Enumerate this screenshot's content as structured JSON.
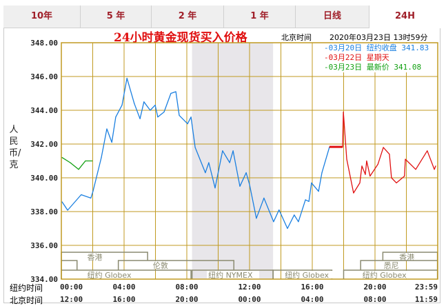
{
  "tabs": [
    {
      "label": "10年",
      "active": false
    },
    {
      "label": "5 年",
      "active": false
    },
    {
      "label": "2 年",
      "active": false
    },
    {
      "label": "1 年",
      "active": false
    },
    {
      "label": "日线",
      "active": false
    },
    {
      "label": "24H",
      "active": true
    }
  ],
  "header": {
    "title": "24小时黄金现货买入价格",
    "timezone_label": "北京时间",
    "timestamp": "2020年03月23日 13时59分"
  },
  "legend": [
    {
      "text": "-03月20日  纽约收盘 341.83",
      "color": "#1a7fe0"
    },
    {
      "text": "-03月22日    星期天",
      "color": "#e01010"
    },
    {
      "text": "-03月23日    最新价 341.08",
      "color": "#11a011"
    }
  ],
  "chart_data": {
    "type": "line",
    "title": "24小时黄金现货买入价格",
    "ylabel": "人民币/克",
    "ylim": [
      334,
      348
    ],
    "y_ticks": [
      "348.00",
      "346.00",
      "344.00",
      "342.00",
      "340.00",
      "338.00",
      "336.00",
      "334.00"
    ],
    "x_axis_rows": [
      {
        "label": "纽约时间",
        "ticks": [
          "00:00",
          "04:00",
          "08:00",
          "12:00",
          "16:00",
          "20:00",
          "23:59"
        ]
      },
      {
        "label": "北京时间",
        "ticks": [
          "12:00",
          "16:00",
          "20:00",
          "00:00",
          "04:00",
          "08:00",
          "11:59"
        ]
      }
    ],
    "xlim_ny_hours": [
      0,
      24
    ],
    "grid": true,
    "shaded_period_ny": [
      "08:20",
      "13:30"
    ],
    "series": [
      {
        "name": "03月20日",
        "color": "#1a7fe0",
        "points": [
          [
            "00:03",
            338.57
          ],
          [
            "00:24",
            338.08
          ],
          [
            "01:16",
            339.0
          ],
          [
            "01:53",
            338.8
          ],
          [
            "02:01",
            339.2
          ],
          [
            "02:33",
            341.2
          ],
          [
            "02:54",
            342.9
          ],
          [
            "03:13",
            342.1
          ],
          [
            "03:28",
            343.6
          ],
          [
            "03:52",
            344.3
          ],
          [
            "04:11",
            345.9
          ],
          [
            "04:39",
            344.4
          ],
          [
            "05:01",
            343.5
          ],
          [
            "05:16",
            344.5
          ],
          [
            "05:40",
            344.0
          ],
          [
            "05:59",
            344.3
          ],
          [
            "06:09",
            343.6
          ],
          [
            "06:33",
            343.9
          ],
          [
            "06:59",
            345.0
          ],
          [
            "07:18",
            345.1
          ],
          [
            "07:31",
            343.7
          ],
          [
            "08:03",
            343.2
          ],
          [
            "08:16",
            343.6
          ],
          [
            "08:32",
            341.8
          ],
          [
            "09:11",
            340.3
          ],
          [
            "09:24",
            340.9
          ],
          [
            "09:48",
            339.4
          ],
          [
            "10:17",
            341.6
          ],
          [
            "10:44",
            340.9
          ],
          [
            "10:57",
            341.6
          ],
          [
            "11:23",
            339.5
          ],
          [
            "11:47",
            340.3
          ],
          [
            "12:00",
            339.6
          ],
          [
            "12:26",
            337.6
          ],
          [
            "12:55",
            338.8
          ],
          [
            "13:32",
            337.4
          ],
          [
            "13:53",
            338.1
          ],
          [
            "14:25",
            337.0
          ],
          [
            "14:51",
            337.8
          ],
          [
            "15:07",
            337.4
          ],
          [
            "15:34",
            338.7
          ],
          [
            "15:47",
            338.6
          ],
          [
            "15:57",
            339.7
          ],
          [
            "16:24",
            339.2
          ],
          [
            "16:37",
            340.3
          ],
          [
            "17:06",
            341.83
          ]
        ]
      },
      {
        "name": "03月22日",
        "color": "#e01010",
        "points": [
          [
            "17:06",
            341.83
          ],
          [
            "17:56",
            341.83
          ],
          [
            "17:59",
            343.9
          ],
          [
            "18:12",
            341.1
          ],
          [
            "18:38",
            339.1
          ],
          [
            "19:02",
            339.7
          ],
          [
            "19:10",
            340.7
          ],
          [
            "19:23",
            340.2
          ],
          [
            "19:28",
            341.0
          ],
          [
            "19:41",
            340.1
          ],
          [
            "20:11",
            340.8
          ],
          [
            "20:32",
            341.8
          ],
          [
            "20:55",
            341.4
          ],
          [
            "21:03",
            340.0
          ],
          [
            "21:22",
            339.7
          ],
          [
            "21:53",
            340.1
          ],
          [
            "21:56",
            341.1
          ],
          [
            "22:36",
            340.5
          ],
          [
            "23:20",
            341.6
          ],
          [
            "23:47",
            340.5
          ],
          [
            "23:52",
            340.7
          ]
        ]
      },
      {
        "name": "03月23日",
        "color": "#11a011",
        "points": [
          [
            "00:03",
            341.2
          ],
          [
            "00:34",
            340.9
          ],
          [
            "01:06",
            340.5
          ],
          [
            "01:32",
            341.0
          ],
          [
            "01:58",
            341.0
          ]
        ]
      }
    ],
    "sessions": [
      {
        "label": "香港",
        "start": "00:00",
        "end": "05:30",
        "row": 0
      },
      {
        "label": "香港",
        "start": "20:30",
        "end": "23:59",
        "row": 0
      },
      {
        "label": "",
        "start": "00:00",
        "end": "01:00",
        "row": 1
      },
      {
        "label": "伦敦",
        "start": "03:38",
        "end": "11:00",
        "row": 1
      },
      {
        "label": "悉尼",
        "start": "19:05",
        "end": "23:59",
        "row": 1
      },
      {
        "label": "纽约 Globex",
        "start": "00:00",
        "end": "08:16",
        "row": 2
      },
      {
        "label": "纽约 NYMEX",
        "start": "08:20",
        "end": "13:30",
        "row": 2
      },
      {
        "label": "纽约 Globex",
        "start": "13:30",
        "end": "17:15",
        "row": 2
      },
      {
        "label": "纽约 Globex",
        "start": "18:00",
        "end": "23:59",
        "row": 2
      }
    ]
  }
}
